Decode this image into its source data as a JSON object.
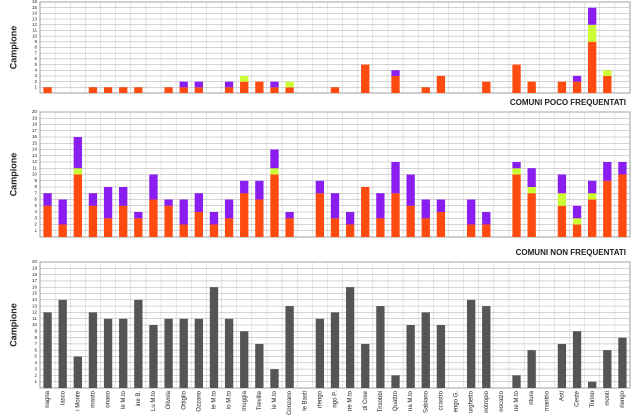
{
  "chart_data": [
    {
      "type": "bar",
      "stacked": true,
      "y_label": "Campione",
      "series": [
        {
          "color": "#ff4a10",
          "values": [
            1,
            0,
            0,
            1,
            1,
            1,
            1,
            0,
            1,
            1,
            1,
            0,
            1,
            2,
            2,
            1,
            1,
            0,
            0,
            1,
            0,
            5,
            0,
            3,
            0,
            1,
            3,
            0,
            0,
            2,
            0,
            5,
            2,
            0,
            2,
            2,
            9,
            3,
            0
          ]
        },
        {
          "color": "#ccff33",
          "values": [
            0,
            0,
            0,
            0,
            0,
            0,
            0,
            0,
            0,
            0,
            0,
            0,
            0,
            1,
            0,
            0,
            1,
            0,
            0,
            0,
            0,
            0,
            0,
            0,
            0,
            0,
            0,
            0,
            0,
            0,
            0,
            0,
            0,
            0,
            0,
            0,
            3,
            1,
            0
          ]
        },
        {
          "color": "#8a1ef0",
          "values": [
            0,
            0,
            0,
            0,
            0,
            0,
            0,
            0,
            0,
            1,
            1,
            0,
            1,
            0,
            0,
            1,
            0,
            0,
            0,
            0,
            0,
            0,
            0,
            1,
            0,
            0,
            0,
            0,
            0,
            0,
            0,
            0,
            0,
            0,
            0,
            1,
            3,
            0,
            0
          ]
        }
      ],
      "ylim": [
        0,
        16
      ],
      "yticks": [
        1,
        2,
        3,
        4,
        5,
        6,
        7,
        8,
        9,
        10,
        11,
        12,
        13,
        14,
        15,
        16
      ],
      "grid": true
    },
    {
      "type": "bar",
      "stacked": true,
      "title": "COMUNI POCO FREQUENTATI",
      "y_label": "Campione",
      "series": [
        {
          "color": "#ff4a10",
          "values": [
            5,
            2,
            10,
            5,
            3,
            5,
            3,
            6,
            5,
            2,
            4,
            2,
            3,
            7,
            6,
            10,
            3,
            0,
            7,
            3,
            2,
            8,
            3,
            7,
            5,
            3,
            4,
            0,
            2,
            2,
            0,
            10,
            7,
            0,
            5,
            2,
            6,
            9,
            10
          ]
        },
        {
          "color": "#ccff33",
          "values": [
            0,
            0,
            1,
            0,
            0,
            0,
            0,
            0,
            0,
            0,
            0,
            0,
            0,
            0,
            0,
            1,
            0,
            0,
            0,
            0,
            0,
            0,
            0,
            0,
            0,
            0,
            0,
            0,
            0,
            0,
            0,
            1,
            1,
            0,
            2,
            1,
            1,
            0,
            0
          ]
        },
        {
          "color": "#8a1ef0",
          "values": [
            2,
            4,
            5,
            2,
            5,
            3,
            1,
            4,
            1,
            4,
            3,
            2,
            3,
            2,
            3,
            3,
            1,
            0,
            2,
            4,
            2,
            0,
            4,
            5,
            5,
            3,
            2,
            0,
            4,
            2,
            0,
            1,
            3,
            0,
            3,
            2,
            2,
            3,
            2
          ]
        }
      ],
      "ylim": [
        0,
        20
      ],
      "yticks": [
        1,
        2,
        3,
        4,
        5,
        6,
        7,
        8,
        9,
        10,
        11,
        12,
        13,
        14,
        15,
        16,
        17,
        18,
        19,
        20
      ],
      "grid": true
    },
    {
      "type": "bar",
      "title": "COMUNI NON FREQUENTATI",
      "y_label": "Campione",
      "categories": [
        "nagna",
        "lasco",
        "i Monte",
        "rnasto",
        "onano",
        "le M.to",
        "ine B.",
        "Lu M.to",
        "Olivola",
        "Ottiglio",
        "Ozzano",
        "le M.to",
        "io M.to",
        "muggia",
        "Treville",
        "le M.to",
        "Conzano",
        "le Basti",
        "rfengo",
        "ngo P.",
        "ne M.to",
        "di Cree",
        "Trisobbi",
        "Quattro",
        "na M.to",
        "Sabiano",
        "ccastro",
        "engo G.",
        "urghetto",
        "notropio",
        "nocalzo",
        "ne M.to",
        "ntura",
        "mantrio",
        "Asti",
        "Ceste",
        "Torino",
        "monti",
        "rlengo"
      ],
      "series": [
        {
          "color": "#555555",
          "values": [
            12,
            14,
            5,
            12,
            11,
            11,
            14,
            10,
            11,
            11,
            11,
            16,
            11,
            9,
            7,
            3,
            13,
            0,
            11,
            12,
            16,
            7,
            13,
            2,
            10,
            12,
            10,
            0,
            14,
            13,
            0,
            2,
            6,
            0,
            7,
            9,
            1,
            6,
            8
          ]
        }
      ],
      "ylim": [
        0,
        20
      ],
      "yticks": [
        1,
        2,
        3,
        4,
        5,
        6,
        7,
        8,
        9,
        10,
        11,
        12,
        13,
        14,
        15,
        16,
        17,
        18,
        19,
        20
      ],
      "grid": true
    }
  ]
}
